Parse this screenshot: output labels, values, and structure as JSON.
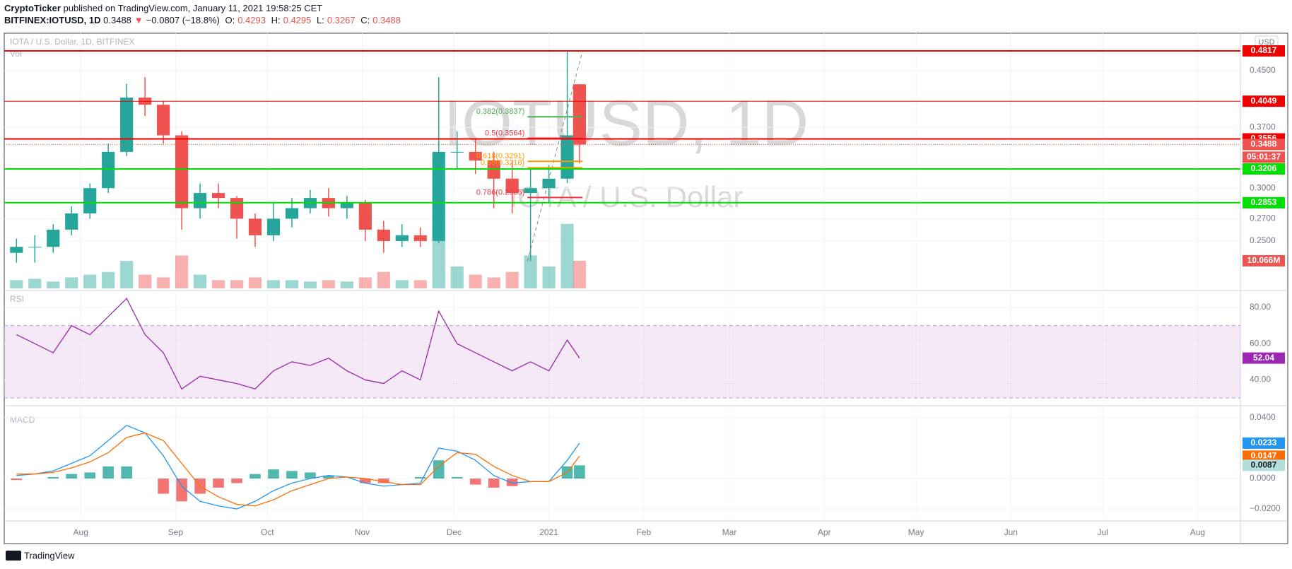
{
  "header": {
    "publisher": "CryptoTicker",
    "published": "published on TradingView.com, January 11, 2021 19:58:25 CET",
    "symbol": "BITFINEX:IOTUSD, 1D",
    "last": "0.3488",
    "direction": "▼",
    "change": "−0.0807 (−18.8%)",
    "open_label": "O:",
    "open": "0.4293",
    "high_label": "H:",
    "high": "0.4295",
    "low_label": "L:",
    "low": "0.3267",
    "close_label": "C:",
    "close": "0.3488"
  },
  "chart_data": [
    {
      "type": "candlestick",
      "title": "IOTA / U.S. Dollar, 1D, BITFINEX",
      "watermark": "IOTUSD, 1D",
      "watermark_subtitle": "IOTA / U.S. Dollar",
      "currency": "USD",
      "volume_label": "Vol",
      "x": [
        4,
        10,
        16,
        22,
        28,
        34,
        40,
        46,
        52,
        58,
        64,
        70,
        76,
        82,
        88,
        94,
        100,
        106,
        112,
        118,
        124,
        130,
        136,
        142,
        148,
        154,
        160,
        166,
        172,
        178,
        184,
        188
      ],
      "open": [
        0.24,
        0.245,
        0.245,
        0.26,
        0.275,
        0.3,
        0.34,
        0.41,
        0.4,
        0.36,
        0.28,
        0.295,
        0.29,
        0.27,
        0.255,
        0.27,
        0.28,
        0.29,
        0.28,
        0.285,
        0.26,
        0.25,
        0.255,
        0.25,
        0.34,
        0.34,
        0.33,
        0.31,
        0.295,
        0.3,
        0.31,
        0.4293
      ],
      "high": [
        0.252,
        0.255,
        0.265,
        0.282,
        0.305,
        0.35,
        0.43,
        0.44,
        0.405,
        0.365,
        0.305,
        0.305,
        0.292,
        0.275,
        0.285,
        0.29,
        0.298,
        0.3,
        0.292,
        0.288,
        0.268,
        0.265,
        0.262,
        0.44,
        0.365,
        0.355,
        0.34,
        0.33,
        0.32,
        0.325,
        0.482,
        0.4295
      ],
      "low": [
        0.232,
        0.232,
        0.24,
        0.255,
        0.27,
        0.295,
        0.335,
        0.385,
        0.35,
        0.26,
        0.27,
        0.28,
        0.252,
        0.245,
        0.25,
        0.262,
        0.275,
        0.272,
        0.27,
        0.25,
        0.24,
        0.245,
        0.245,
        0.248,
        0.32,
        0.315,
        0.28,
        0.275,
        0.233,
        0.285,
        0.305,
        0.3267
      ],
      "close": [
        0.245,
        0.245,
        0.26,
        0.275,
        0.3,
        0.34,
        0.41,
        0.4,
        0.36,
        0.28,
        0.295,
        0.29,
        0.27,
        0.255,
        0.27,
        0.28,
        0.29,
        0.28,
        0.285,
        0.26,
        0.25,
        0.255,
        0.25,
        0.34,
        0.34,
        0.33,
        0.31,
        0.295,
        0.3,
        0.31,
        0.36,
        0.3488
      ],
      "up_color": "#26a69a",
      "down_color": "#ef5350",
      "volume": {
        "values": [
          3000000,
          3500000,
          2500000,
          4000000,
          5000000,
          6000000,
          10000000,
          5000000,
          4000000,
          12000000,
          5000000,
          3000000,
          3000000,
          4000000,
          3000000,
          3000000,
          2500000,
          3000000,
          2500000,
          4000000,
          6000000,
          3000000,
          3000000,
          18000000,
          8000000,
          5000000,
          4000000,
          6000000,
          12000000,
          8000000,
          23500000,
          10066000
        ],
        "value_labels": [
          null,
          null,
          null,
          null,
          null,
          null,
          null,
          null,
          null,
          null,
          null,
          null,
          null,
          null,
          null,
          null,
          null,
          null,
          null,
          null,
          null,
          null,
          null,
          null,
          null,
          null,
          null,
          null,
          null,
          null,
          null,
          "10.066M"
        ],
        "ylim": [
          0,
          93000000
        ]
      },
      "xlim": [
        0,
        404
      ],
      "xticks": [
        {
          "value": 25,
          "label": "Aug"
        },
        {
          "value": 56,
          "label": "Sep"
        },
        {
          "value": 86,
          "label": "Oct"
        },
        {
          "value": 117,
          "label": "Nov"
        },
        {
          "value": 147,
          "label": "Dec"
        },
        {
          "value": 178,
          "label": "2021"
        },
        {
          "value": 209,
          "label": "Feb"
        },
        {
          "value": 237,
          "label": "Mar"
        },
        {
          "value": 268,
          "label": "Apr"
        },
        {
          "value": 298,
          "label": "May"
        },
        {
          "value": 329,
          "label": "Jun"
        },
        {
          "value": 359,
          "label": "Jul"
        },
        {
          "value": 390,
          "label": "Aug"
        }
      ],
      "ylim": [
        0.2123,
        0.512
      ],
      "log_scale": true,
      "grid": true,
      "yticks": [
        {
          "value": 0.45,
          "label": "0.4500"
        },
        {
          "value": 0.37,
          "label": "0.3700"
        },
        {
          "value": 0.3,
          "label": "0.3000"
        },
        {
          "value": 0.27,
          "label": "0.2700"
        },
        {
          "value": 0.25,
          "label": "0.2500"
        }
      ],
      "price_lines": [
        {
          "value": 0.4817,
          "color": "#f00000",
          "width": 2
        },
        {
          "value": 0.4049,
          "color": "#f00000",
          "width": 1
        },
        {
          "value": 0.3556,
          "color": "#f00000",
          "width": 2
        },
        {
          "value": 0.3206,
          "color": "#00e000",
          "width": 2
        },
        {
          "value": 0.2853,
          "color": "#00e000",
          "width": 2
        }
      ],
      "current_price": {
        "value": 0.3488,
        "color": "#ef5350",
        "countdown": "05:01:37"
      },
      "fib": {
        "x": [
          171,
          189
        ],
        "levels": [
          {
            "label": "0.382(0.3837)",
            "value": 0.3837,
            "color": "#4caf50"
          },
          {
            "label": "0.5(0.3564)",
            "value": 0.3564,
            "color": "#f23645"
          },
          {
            "label": "0.618(0.3291)",
            "value": 0.3291,
            "color": "#ff9800"
          },
          {
            "label": "0.65(0.3218)",
            "value": 0.3218,
            "color": "#ff9800"
          },
          {
            "label": "0.786(0.2905)",
            "value": 0.2905,
            "color": "#f23645"
          }
        ]
      },
      "trend_line": {
        "x": [
          171,
          189
        ],
        "y": [
          0.233,
          0.482
        ]
      }
    },
    {
      "type": "line",
      "label": "RSI",
      "color": "#9c27b0",
      "values": [
        65,
        60,
        55,
        70,
        65,
        75,
        85,
        65,
        55,
        35,
        42,
        40,
        38,
        35,
        45,
        50,
        48,
        52,
        45,
        40,
        38,
        45,
        40,
        78,
        60,
        55,
        50,
        45,
        50,
        45,
        62,
        52.04
      ],
      "ylim": [
        26.9,
        88.2
      ],
      "yticks": [
        {
          "value": 80,
          "label": "80.00"
        },
        {
          "value": 60,
          "label": "60.00"
        },
        {
          "value": 40,
          "label": "40.00"
        }
      ],
      "band": [
        30,
        70
      ],
      "band_color": "#e1bee7"
    },
    {
      "type": "macd",
      "label": "MACD",
      "macd": {
        "color": "#2196f3",
        "values": [
          0.002,
          0.003,
          0.005,
          0.01,
          0.015,
          0.025,
          0.035,
          0.03,
          0.015,
          -0.005,
          -0.015,
          -0.018,
          -0.02,
          -0.015,
          -0.008,
          -0.003,
          0,
          0.002,
          0.001,
          -0.003,
          -0.005,
          -0.004,
          -0.003,
          0.02,
          0.018,
          0.012,
          0.002,
          -0.003,
          -0.002,
          -0.002,
          0.012,
          0.0233
        ]
      },
      "signal": {
        "color": "#ff6d00",
        "values": [
          0.003,
          0.003,
          0.004,
          0.007,
          0.011,
          0.017,
          0.027,
          0.03,
          0.025,
          0.01,
          -0.005,
          -0.012,
          -0.017,
          -0.018,
          -0.014,
          -0.008,
          -0.004,
          0,
          0.001,
          0,
          -0.002,
          -0.004,
          -0.004,
          0.008,
          0.017,
          0.016,
          0.008,
          0.002,
          -0.002,
          -0.002,
          0.004,
          0.0147
        ]
      },
      "histogram": {
        "up_color": "#26a69a",
        "down_color": "#ef5350",
        "label_color": "#b2dfdb",
        "values": [
          -0.001,
          0,
          0.001,
          0.003,
          0.004,
          0.008,
          0.008,
          0,
          -0.01,
          -0.015,
          -0.01,
          -0.006,
          -0.003,
          0.003,
          0.006,
          0.005,
          0.004,
          0.002,
          0,
          -0.003,
          -0.003,
          0,
          0.001,
          0.012,
          0.001,
          -0.004,
          -0.006,
          -0.005,
          0,
          0,
          0.008,
          0.0087
        ]
      },
      "ylim": [
        -0.0265,
        0.0465
      ],
      "yticks": [
        {
          "value": 0.04,
          "label": "0.0400"
        },
        {
          "value": 0,
          "label": "0.0000"
        },
        {
          "value": -0.02,
          "label": "−0.0200"
        }
      ]
    }
  ],
  "footer": {
    "brand": "TradingView"
  }
}
